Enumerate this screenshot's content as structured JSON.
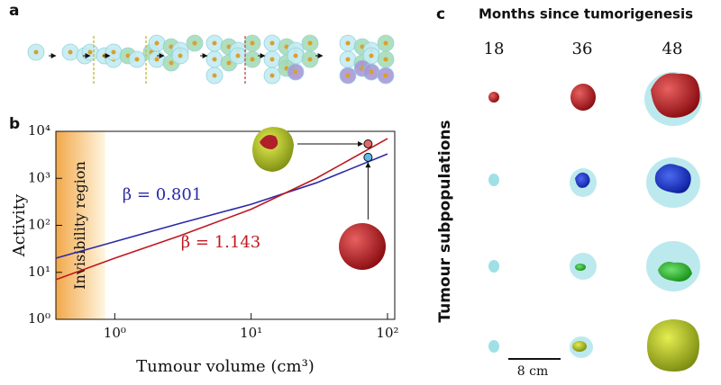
{
  "panel_labels": [
    "a",
    "b",
    "c"
  ],
  "chart_data": {
    "type": "line",
    "xlabel": "Tumour volume (cm³)",
    "ylabel": "Activity",
    "xscale": "log",
    "yscale": "log",
    "xlim": [
      0.37,
      113
    ],
    "ylim": [
      1,
      10000
    ],
    "xticks": [
      {
        "value": 1,
        "label": "10⁰"
      },
      {
        "value": 10,
        "label": "10¹"
      },
      {
        "value": 100,
        "label": "10²"
      }
    ],
    "yticks": [
      {
        "value": 1,
        "label": "10⁰"
      },
      {
        "value": 10,
        "label": "10¹"
      },
      {
        "value": 100,
        "label": "10²"
      },
      {
        "value": 1000,
        "label": "10³"
      },
      {
        "value": 10000,
        "label": "10⁴"
      }
    ],
    "x": [
      0.37,
      1,
      3,
      10,
      30,
      100
    ],
    "series": [
      {
        "name": "β = 0.801",
        "color": "#2a2aa8",
        "values": [
          20,
          45,
          110,
          280,
          800,
          3300
        ]
      },
      {
        "name": "β = 1.143",
        "color": "#c0181e",
        "values": [
          7,
          20,
          60,
          220,
          1000,
          7000
        ]
      }
    ],
    "region": {
      "label": "Invisibility region",
      "x": [
        0.37,
        0.85
      ]
    },
    "points": [
      {
        "x": 72,
        "y": 5400,
        "color": "#e06a6a"
      },
      {
        "x": 72,
        "y": 2800,
        "color": "#5fb8e8"
      }
    ]
  },
  "panel_c": {
    "title": "Months since tumorigenesis",
    "columns": [
      "18",
      "36",
      "48"
    ],
    "row_label": "Tumour subpopulations",
    "scale_bar": "8 cm"
  }
}
